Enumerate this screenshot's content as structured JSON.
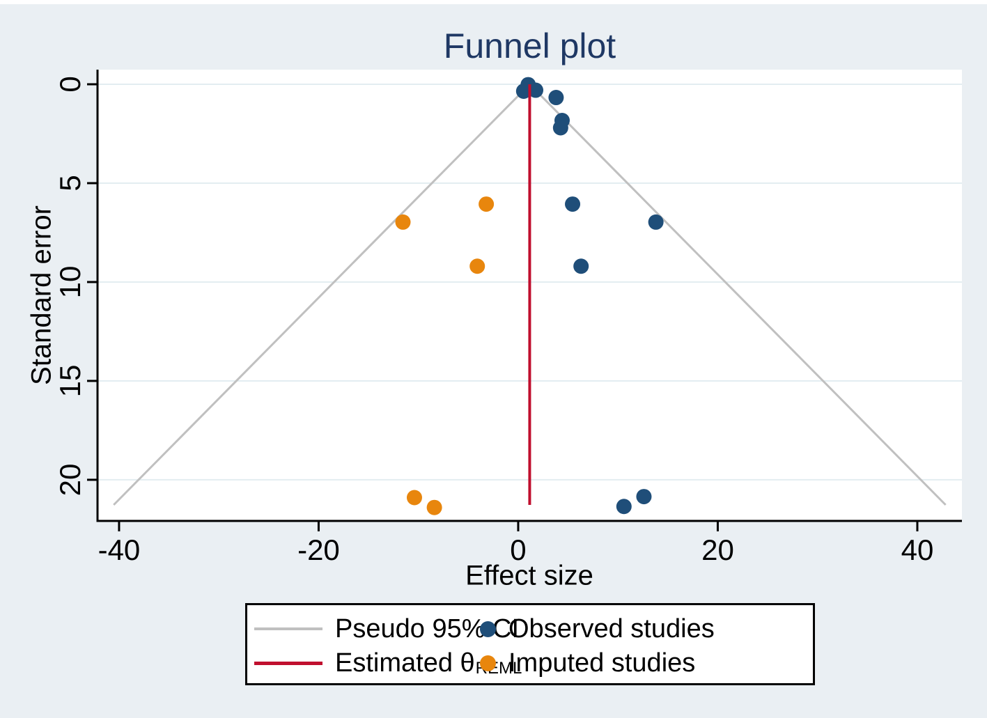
{
  "title": "Funnel plot",
  "colors": {
    "background": "#eaeff3",
    "title": "#1f3864",
    "observed": "#1f4e79",
    "imputed": "#e8860d",
    "estimate_line": "#c00f2e",
    "pseudo_ci_line": "#c0c0c0",
    "gridline": "#e3edf1",
    "axis": "#000000",
    "plot_background": "#ffffff"
  },
  "chart_data": {
    "type": "scatter",
    "subtype": "funnel-plot",
    "title": "Funnel plot",
    "xlabel": "Effect size",
    "ylabel": "Standard error",
    "x_ticks": [
      -40,
      -20,
      0,
      20,
      40
    ],
    "y_ticks": [
      0,
      5,
      10,
      15,
      20
    ],
    "xlim": [
      -42.16,
      44.47
    ],
    "ylim": [
      -0.74,
      22.08
    ],
    "y_inverted": true,
    "grid": "horizontal-only",
    "legend_position": "bottom",
    "estimate": {
      "name": "Estimated θ REML",
      "theta": 1.15,
      "se_range": [
        0,
        21.27
      ]
    },
    "pseudo_ci": {
      "name": "Pseudo 95% CI",
      "multiplier": 1.96,
      "se_max": 21.27
    },
    "series": [
      {
        "name": "Observed studies",
        "color": "#1f4e79",
        "points": [
          {
            "es": 1.0,
            "se": 0.02
          },
          {
            "es": 0.55,
            "se": 0.35
          },
          {
            "es": 1.75,
            "se": 0.3
          },
          {
            "es": 3.8,
            "se": 0.67
          },
          {
            "es": 4.4,
            "se": 1.83
          },
          {
            "es": 4.25,
            "se": 2.2
          },
          {
            "es": 5.45,
            "se": 6.06
          },
          {
            "es": 13.8,
            "se": 6.97
          },
          {
            "es": 6.3,
            "se": 9.2
          },
          {
            "es": 12.6,
            "se": 20.85
          },
          {
            "es": 10.6,
            "se": 21.35
          }
        ]
      },
      {
        "name": "Imputed studies",
        "color": "#e8860d",
        "points": [
          {
            "es": -3.2,
            "se": 6.06
          },
          {
            "es": -11.55,
            "se": 6.97
          },
          {
            "es": -4.1,
            "se": 9.2
          },
          {
            "es": -10.4,
            "se": 20.9
          },
          {
            "es": -8.4,
            "se": 21.4
          }
        ]
      }
    ]
  },
  "legend": {
    "items": [
      {
        "key": "gray-line",
        "label": "Pseudo 95% CI"
      },
      {
        "key": "red-line",
        "label": "Estimated θ",
        "subscript": "REML"
      },
      {
        "key": "blue-dot",
        "label": "Observed studies"
      },
      {
        "key": "orange-dot",
        "label": "Imputed studies"
      }
    ]
  }
}
